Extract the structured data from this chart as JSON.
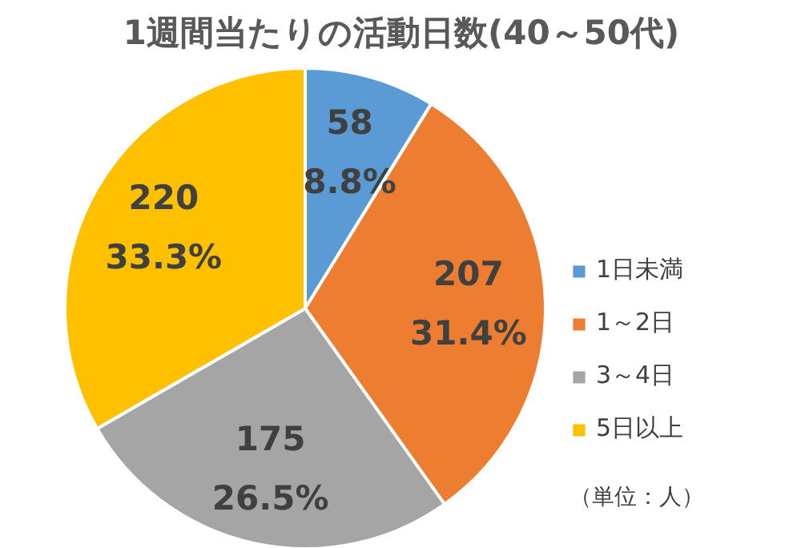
{
  "chart_data": {
    "type": "pie",
    "title": "1週間当たりの活動日数(40～50代)",
    "categories": [
      "1日未満",
      "1～2日",
      "3～4日",
      "5日以上"
    ],
    "values": [
      58,
      207,
      175,
      220
    ],
    "colors": [
      "#5b9bd5",
      "#ed7d31",
      "#a5a5a5",
      "#ffc000"
    ],
    "value_labels": [
      "58\n8.8%",
      "207\n31.4%",
      "175\n26.5%",
      "220\n33.3%"
    ],
    "legend": "right",
    "annotations": [
      "（単位：人）"
    ]
  }
}
